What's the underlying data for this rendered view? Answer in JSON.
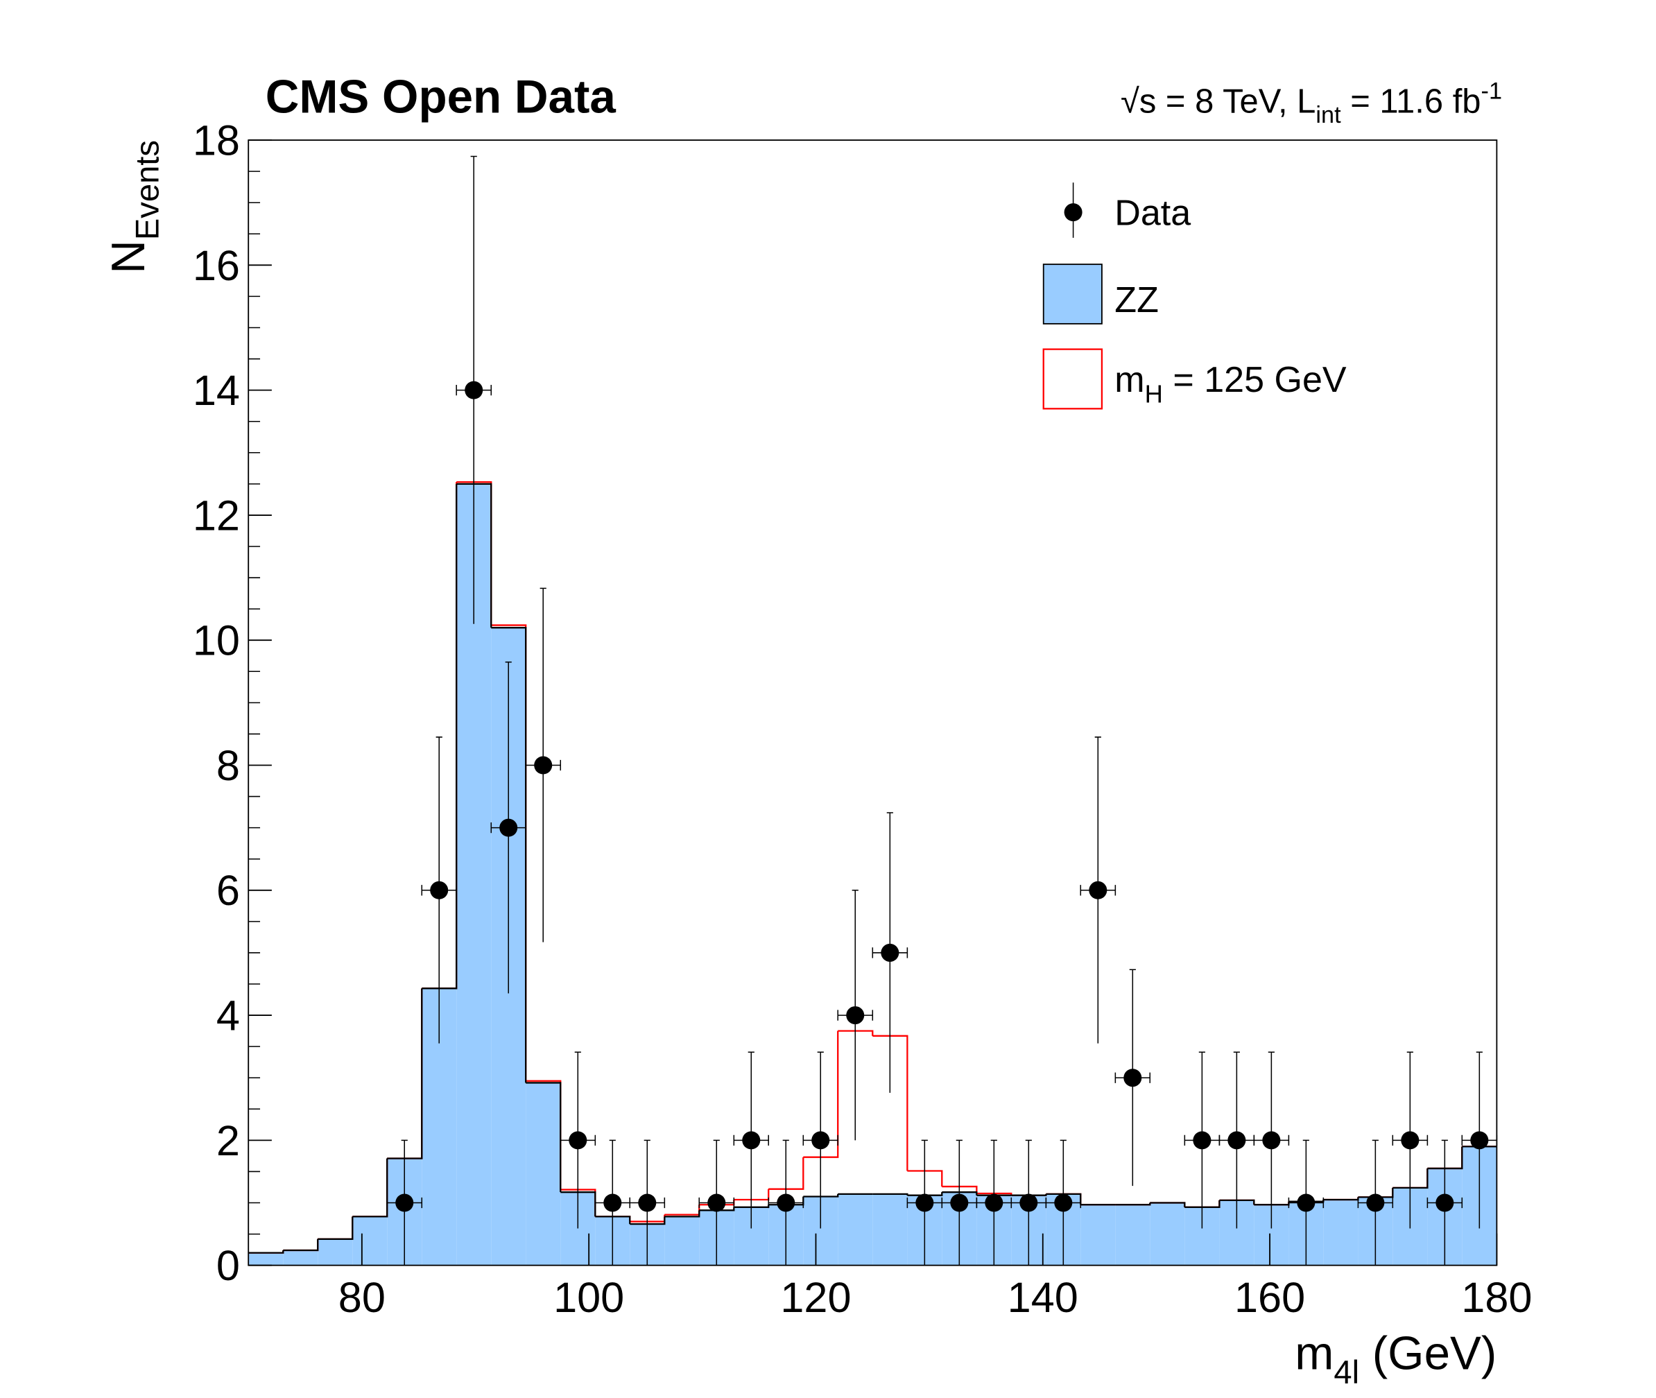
{
  "chart_data": {
    "type": "histogram",
    "title": "CMS Open Data",
    "annotation": [
      "√s = 8 TeV, L",
      "int",
      " = 11.6 fb",
      "-1"
    ],
    "xlabel": [
      "m",
      "4l",
      " (GeV)"
    ],
    "ylabel": [
      "N",
      "Events"
    ],
    "bins": [
      70,
      73.06,
      76.11,
      79.17,
      82.22,
      85.28,
      88.33,
      91.39,
      94.44,
      97.5,
      100.56,
      103.61,
      106.67,
      109.72,
      112.78,
      115.83,
      118.89,
      121.94,
      125,
      128.06,
      131.11,
      134.17,
      137.22,
      140.28,
      143.33,
      146.39,
      149.44,
      152.5,
      155.56,
      158.61,
      161.67,
      164.72,
      167.78,
      170.83,
      173.89,
      176.94,
      180
    ],
    "series": [
      {
        "name": [
          "Data"
        ],
        "color": "#000000",
        "values": [
          null,
          null,
          null,
          null,
          1,
          6,
          14,
          7,
          8,
          2,
          1,
          1,
          null,
          1,
          2,
          1,
          2,
          4,
          5,
          1,
          1,
          1,
          1,
          1,
          6,
          3,
          null,
          2,
          2,
          2,
          1,
          null,
          1,
          2,
          1,
          2
        ],
        "errors": [
          null,
          null,
          null,
          null,
          1,
          2.45,
          3.74,
          2.65,
          2.83,
          1.41,
          1,
          1,
          null,
          1,
          1.41,
          1,
          1.41,
          2,
          2.24,
          1,
          1,
          1,
          1,
          1,
          2.45,
          1.73,
          null,
          1.41,
          1.41,
          1.41,
          1,
          null,
          1,
          1.41,
          1,
          1.41
        ]
      },
      {
        "name": [
          "ZZ"
        ],
        "color": "#99ccff",
        "edge_color": "#000000",
        "values": [
          0.2,
          0.24,
          0.42,
          0.78,
          1.71,
          4.43,
          12.5,
          10.2,
          2.92,
          1.17,
          0.78,
          0.66,
          0.78,
          0.88,
          0.93,
          0.97,
          1.1,
          1.14,
          1.14,
          1.12,
          1.17,
          1.12,
          1.12,
          1.14,
          0.97,
          0.97,
          1.0,
          0.93,
          1.04,
          0.97,
          1.02,
          1.05,
          1.09,
          1.24,
          1.55,
          1.9
        ]
      },
      {
        "name": [
          "m",
          "H",
          " = 125 GeV"
        ],
        "color": "#ff0000",
        "stacked": true,
        "values": [
          0,
          0,
          0,
          0,
          0,
          0,
          0.03,
          0.04,
          0.03,
          0.04,
          0,
          0.04,
          0.03,
          0.09,
          0.12,
          0.25,
          0.63,
          2.61,
          2.53,
          0.39,
          0.09,
          0.03,
          0,
          0,
          0,
          0,
          0,
          0,
          0,
          0,
          0,
          0,
          0,
          0,
          0,
          0
        ]
      }
    ],
    "xlim": [
      70,
      180
    ],
    "xticks": [
      80,
      100,
      120,
      140,
      160,
      180
    ],
    "ylim": [
      0,
      18
    ],
    "yticks": [
      0,
      2,
      4,
      6,
      8,
      10,
      12,
      14,
      16,
      18
    ],
    "legend": "upper right"
  }
}
